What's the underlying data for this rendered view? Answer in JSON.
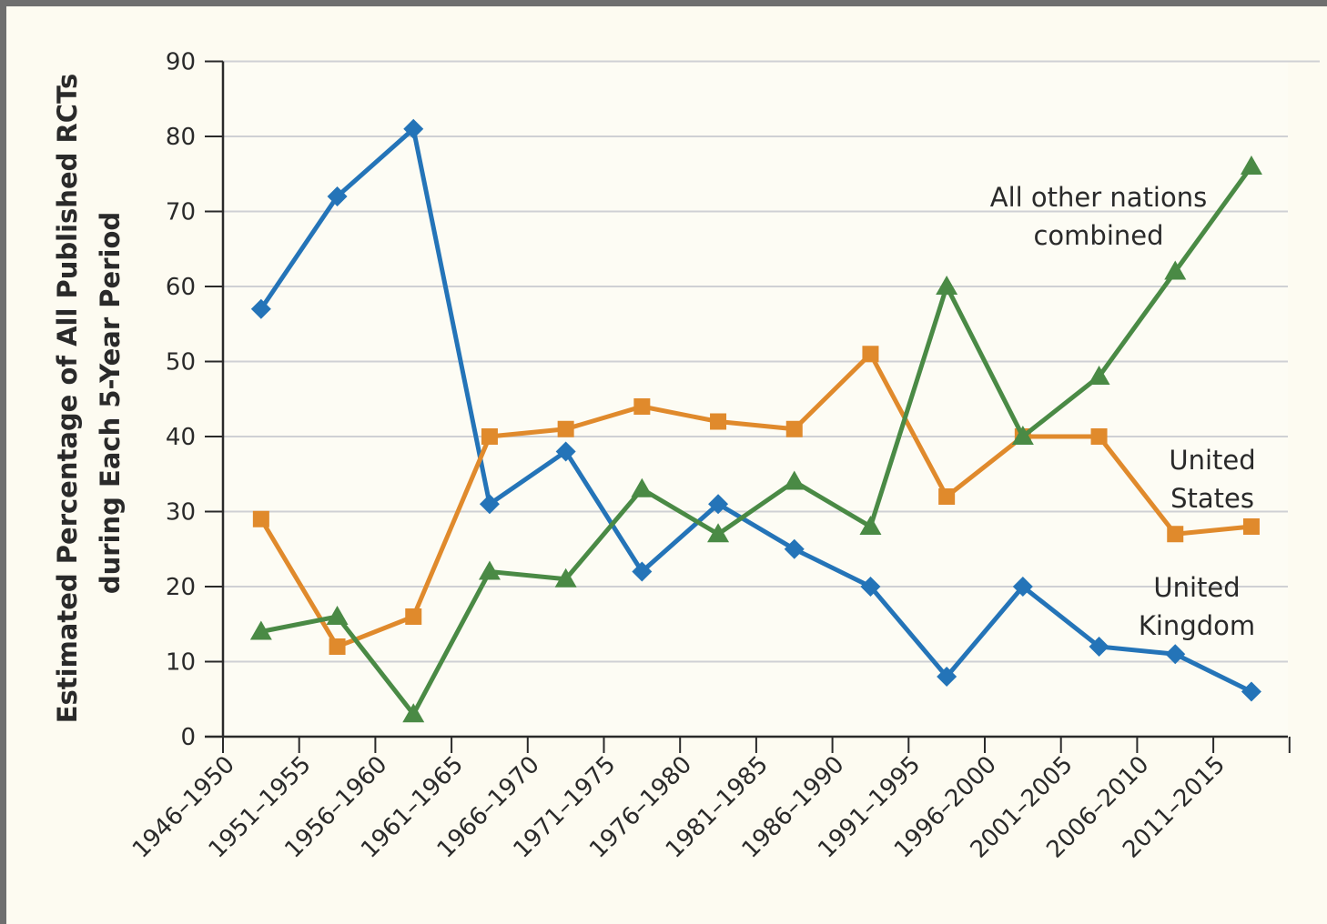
{
  "chart_data": {
    "type": "line",
    "categories": [
      "1946–1950",
      "1951–1955",
      "1956–1960",
      "1961–1965",
      "1966–1970",
      "1971–1975",
      "1976–1980",
      "1981–1985",
      "1986–1990",
      "1991–1995",
      "1996–2000",
      "2001–2005",
      "2006–2010",
      "2011–2015"
    ],
    "ylabel_line1": "Estimated Percentage of All Published RCTs",
    "ylabel_line2": "during Each 5-Year Period",
    "ylim": [
      0,
      90
    ],
    "yticks": [
      0,
      10,
      20,
      30,
      40,
      50,
      60,
      70,
      80,
      90
    ],
    "grid": true,
    "series": [
      {
        "name_lines": [
          "United",
          "Kingdom"
        ],
        "color": "#2474b8",
        "marker": "diamond",
        "values": [
          57,
          72,
          81,
          31,
          38,
          22,
          31,
          25,
          20,
          8,
          20,
          12,
          11,
          6
        ]
      },
      {
        "name_lines": [
          "United",
          "States"
        ],
        "color": "#e08a2c",
        "marker": "square",
        "values": [
          29,
          12,
          16,
          40,
          41,
          44,
          42,
          41,
          51,
          32,
          40,
          40,
          27,
          28
        ]
      },
      {
        "name_lines": [
          "All other nations",
          "combined"
        ],
        "color": "#4a8a45",
        "marker": "triangle",
        "values": [
          14,
          16,
          3,
          22,
          21,
          33,
          27,
          34,
          28,
          60,
          40,
          48,
          62,
          76
        ]
      }
    ]
  }
}
